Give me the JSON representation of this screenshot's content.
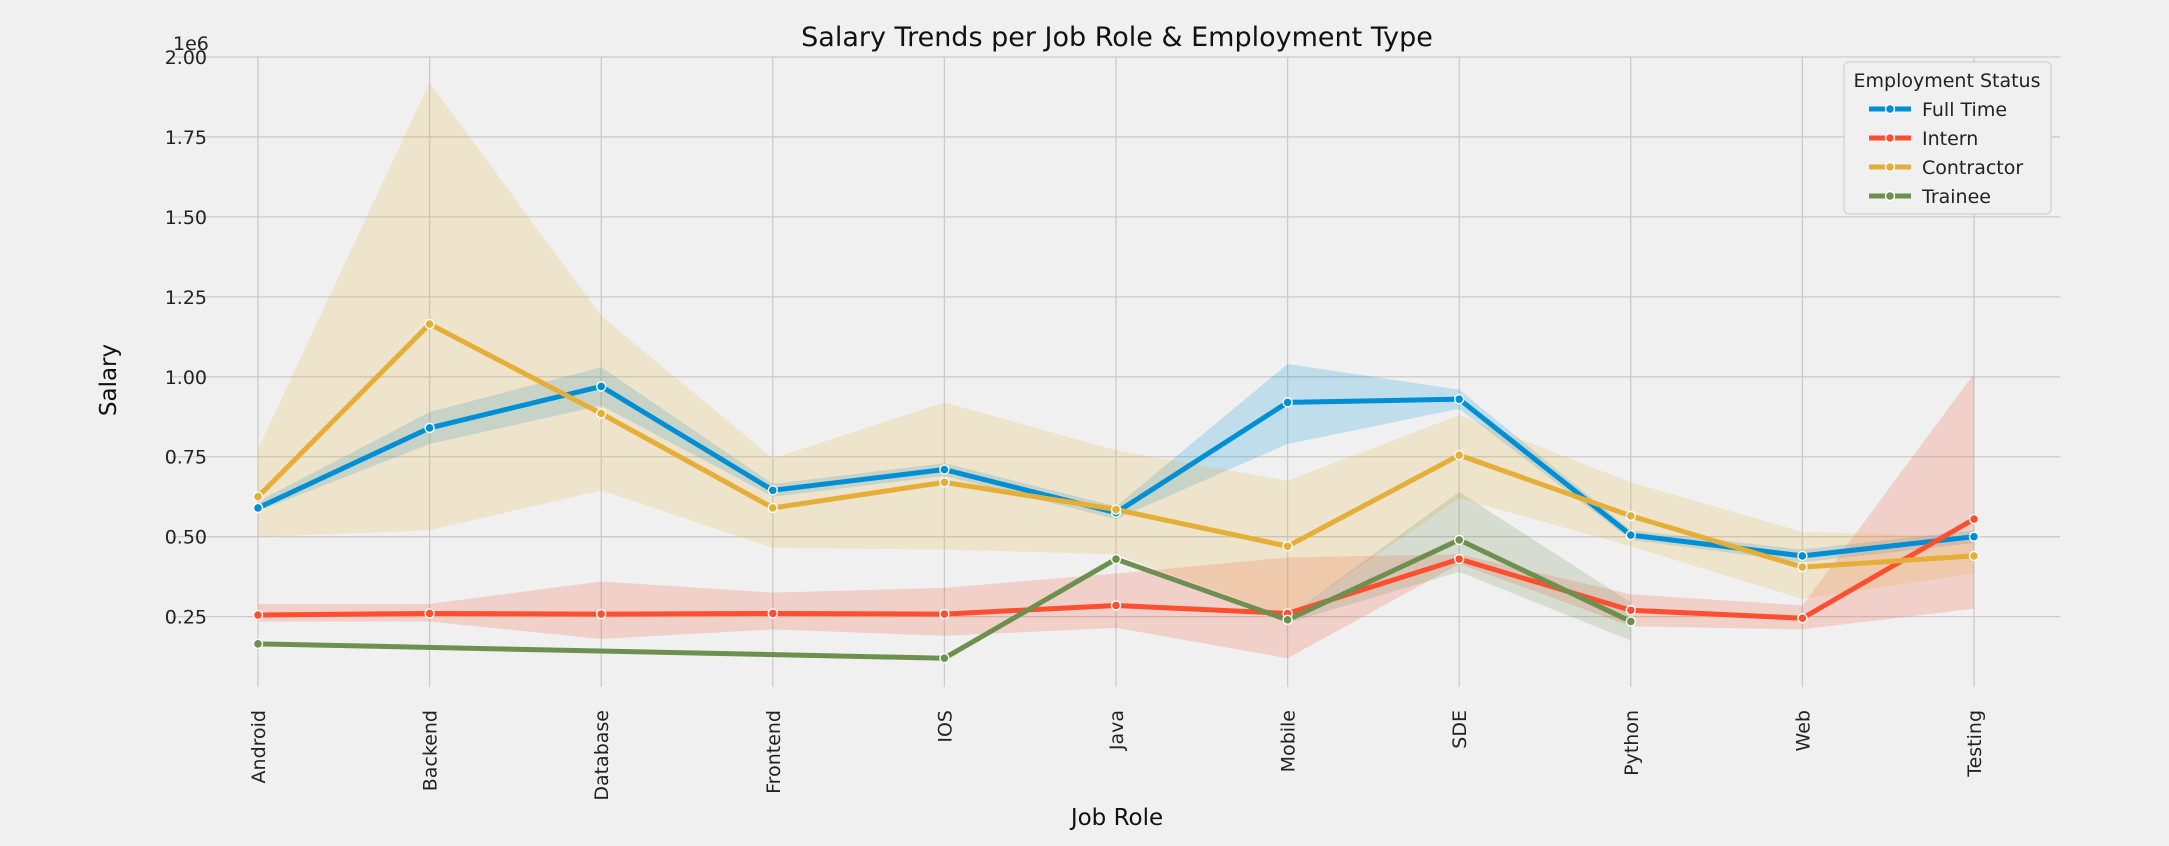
{
  "chart_data": {
    "type": "line",
    "title": "Salary Trends per Job Role & Employment Type",
    "xlabel": "Job Role",
    "ylabel": "Salary",
    "y_offset_label": "1e6",
    "categories": [
      "Android",
      "Backend",
      "Database",
      "Frontend",
      "IOS",
      "Java",
      "Mobile",
      "SDE",
      "Python",
      "Web",
      "Testing"
    ],
    "ylim": [
      0.03,
      2.0
    ],
    "yticks": [
      0.25,
      0.5,
      0.75,
      1.0,
      1.25,
      1.5,
      1.75,
      2.0
    ],
    "ytick_labels": [
      "0.25",
      "0.50",
      "0.75",
      "1.00",
      "1.25",
      "1.50",
      "1.75",
      "2.00"
    ],
    "grid": true,
    "legend_title": "Employment Status",
    "legend_position": "top-right",
    "series": [
      {
        "name": "Full Time",
        "color": "#008fd5",
        "values": [
          0.59,
          0.84,
          0.97,
          0.645,
          0.71,
          0.575,
          0.92,
          0.93,
          0.505,
          0.44,
          0.5
        ],
        "ci_low": [
          0.58,
          0.79,
          0.91,
          0.625,
          0.69,
          0.555,
          0.79,
          0.9,
          0.49,
          0.42,
          0.48
        ],
        "ci_high": [
          0.61,
          0.89,
          1.03,
          0.665,
          0.73,
          0.595,
          1.04,
          0.96,
          0.52,
          0.46,
          0.52
        ]
      },
      {
        "name": "Intern",
        "color": "#fc4f30",
        "values": [
          0.255,
          0.26,
          0.258,
          0.26,
          0.258,
          0.285,
          0.26,
          0.43,
          0.27,
          0.245,
          0.555
        ],
        "ci_low": [
          0.235,
          0.235,
          0.18,
          0.21,
          0.19,
          0.215,
          0.12,
          0.415,
          0.22,
          0.21,
          0.275
        ],
        "ci_high": [
          0.29,
          0.29,
          0.36,
          0.325,
          0.34,
          0.385,
          0.435,
          0.445,
          0.32,
          0.285,
          1.01
        ]
      },
      {
        "name": "Contractor",
        "color": "#e5ae38",
        "values": [
          0.625,
          1.165,
          0.885,
          0.59,
          0.67,
          0.585,
          0.47,
          0.755,
          0.565,
          0.405,
          0.44
        ],
        "ci_low": [
          0.5,
          0.52,
          0.645,
          0.465,
          0.46,
          0.445,
          0.25,
          0.62,
          0.47,
          0.305,
          0.385
        ],
        "ci_high": [
          0.775,
          1.92,
          1.19,
          0.745,
          0.92,
          0.77,
          0.675,
          0.88,
          0.67,
          0.515,
          0.5
        ]
      },
      {
        "name": "Trainee",
        "color": "#6d904f",
        "values": [
          0.165,
          null,
          null,
          null,
          0.12,
          0.43,
          0.24,
          0.49,
          0.235,
          null,
          null
        ],
        "ci_low": [
          null,
          null,
          null,
          null,
          null,
          0.43,
          0.23,
          0.39,
          0.175,
          null,
          null
        ],
        "ci_high": [
          null,
          null,
          null,
          null,
          null,
          0.43,
          0.25,
          0.64,
          0.295,
          null,
          null
        ]
      }
    ]
  }
}
